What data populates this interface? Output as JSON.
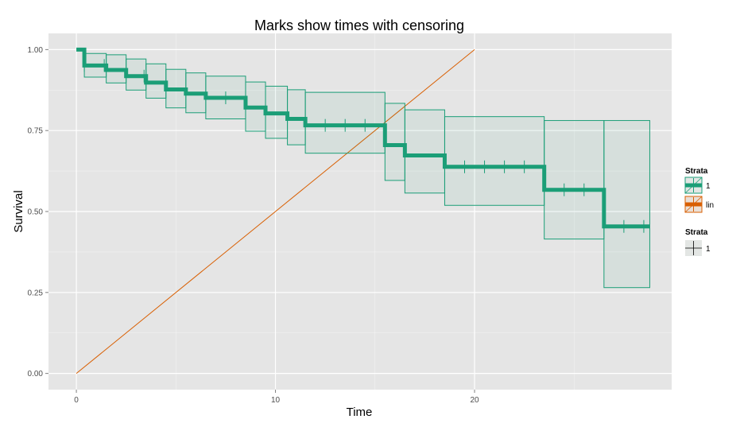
{
  "chart_data": {
    "type": "line",
    "title": "Marks show times with censoring",
    "xlabel": "Time",
    "ylabel": "Survival",
    "xlim": [
      -1.4,
      29.9
    ],
    "ylim": [
      -0.05,
      1.05
    ],
    "xticks": [
      0,
      10,
      20
    ],
    "xtick_labels": [
      "0",
      "10",
      "20"
    ],
    "yticks": [
      0,
      0.25,
      0.5,
      0.75,
      1
    ],
    "ytick_labels": [
      "0.00",
      "0.25",
      "0.50",
      "0.75",
      "1.00"
    ],
    "grid": true,
    "legend_position": "right",
    "colors": {
      "survival": "#1b9e77",
      "lin": "#d95f02",
      "panel": "#e5e5e5",
      "grid": "#ffffff"
    },
    "series": [
      {
        "name": "1",
        "kind": "step",
        "steps": [
          {
            "x0": 0.0,
            "x1": 0.4,
            "y": 1.0,
            "lo": 1.0,
            "hi": 1.0
          },
          {
            "x0": 0.4,
            "x1": 1.5,
            "y": 0.951,
            "lo": 0.915,
            "hi": 0.988
          },
          {
            "x0": 1.5,
            "x1": 2.5,
            "y": 0.937,
            "lo": 0.897,
            "hi": 0.984
          },
          {
            "x0": 2.5,
            "x1": 3.5,
            "y": 0.918,
            "lo": 0.875,
            "hi": 0.971
          },
          {
            "x0": 3.5,
            "x1": 4.5,
            "y": 0.898,
            "lo": 0.85,
            "hi": 0.956
          },
          {
            "x0": 4.5,
            "x1": 5.5,
            "y": 0.877,
            "lo": 0.82,
            "hi": 0.939
          },
          {
            "x0": 5.5,
            "x1": 6.5,
            "y": 0.864,
            "lo": 0.805,
            "hi": 0.928
          },
          {
            "x0": 6.5,
            "x1": 8.5,
            "y": 0.851,
            "lo": 0.786,
            "hi": 0.918
          },
          {
            "x0": 8.5,
            "x1": 9.5,
            "y": 0.821,
            "lo": 0.748,
            "hi": 0.9
          },
          {
            "x0": 9.5,
            "x1": 10.6,
            "y": 0.803,
            "lo": 0.726,
            "hi": 0.887
          },
          {
            "x0": 10.6,
            "x1": 11.5,
            "y": 0.786,
            "lo": 0.706,
            "hi": 0.876
          },
          {
            "x0": 11.5,
            "x1": 15.5,
            "y": 0.766,
            "lo": 0.68,
            "hi": 0.868
          },
          {
            "x0": 15.5,
            "x1": 16.5,
            "y": 0.705,
            "lo": 0.596,
            "hi": 0.834
          },
          {
            "x0": 16.5,
            "x1": 18.5,
            "y": 0.673,
            "lo": 0.557,
            "hi": 0.814
          },
          {
            "x0": 18.5,
            "x1": 23.5,
            "y": 0.638,
            "lo": 0.519,
            "hi": 0.793
          },
          {
            "x0": 23.5,
            "x1": 26.5,
            "y": 0.567,
            "lo": 0.415,
            "hi": 0.781
          },
          {
            "x0": 26.5,
            "x1": 28.8,
            "y": 0.454,
            "lo": 0.265,
            "hi": 0.781
          }
        ],
        "censor_times": [
          0.4,
          1.4,
          3.4,
          7.5,
          9.5,
          12.5,
          13.5,
          14.5,
          19.5,
          20.5,
          21.5,
          22.5,
          24.5,
          25.5,
          27.5,
          28.5
        ]
      },
      {
        "name": "lin",
        "kind": "line",
        "x": [
          0,
          20
        ],
        "y": [
          0,
          1
        ]
      }
    ],
    "legends": [
      {
        "title": "Strata",
        "entries": [
          "1",
          "lin"
        ]
      },
      {
        "title": "Strata",
        "entries": [
          "1"
        ]
      }
    ]
  }
}
